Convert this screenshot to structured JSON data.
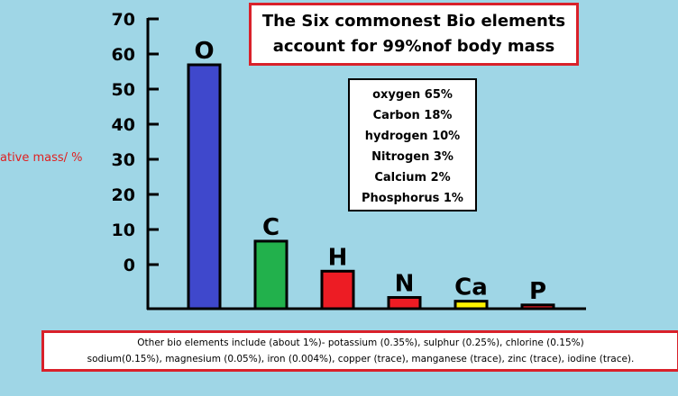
{
  "title_lines": [
    "The Six commonest Bio elements",
    "account for 99%nof body mass"
  ],
  "legend_items": [
    "oxygen   65%",
    "Carbon   18%",
    "hydrogen  10%",
    "Nitrogen    3%",
    "Calcium    2%",
    "Phosphorus   1%"
  ],
  "footer_lines": [
    "Other bio elements include (about 1%)- potassium (0.35%), sulphur (0.25%), chlorine (0.15%)",
    "sodium(0.15%), magnesium (0.05%), iron (0.004%), copper (trace), manganese (trace), zinc (trace), iodine (trace)."
  ],
  "colors": {
    "background": "#9fd6e6",
    "O": "#3f48cc",
    "C": "#22b14c",
    "H": "#ed1c24",
    "N": "#ed1c24",
    "Ca": "#fff200",
    "P": "#ed1c24",
    "box_border": "#d9212a",
    "ylabel": "#e02020"
  },
  "chart_data": {
    "type": "bar",
    "categories": [
      "O",
      "C",
      "H",
      "N",
      "Ca",
      "P"
    ],
    "values": [
      65,
      18,
      10,
      3,
      2,
      1
    ],
    "ylabel": "ative mass/ %",
    "xlabel": "",
    "yticks": [
      "70",
      "60",
      "50",
      "40",
      "30",
      "20",
      "10",
      "0"
    ],
    "grid": false,
    "legend": "top-center"
  }
}
